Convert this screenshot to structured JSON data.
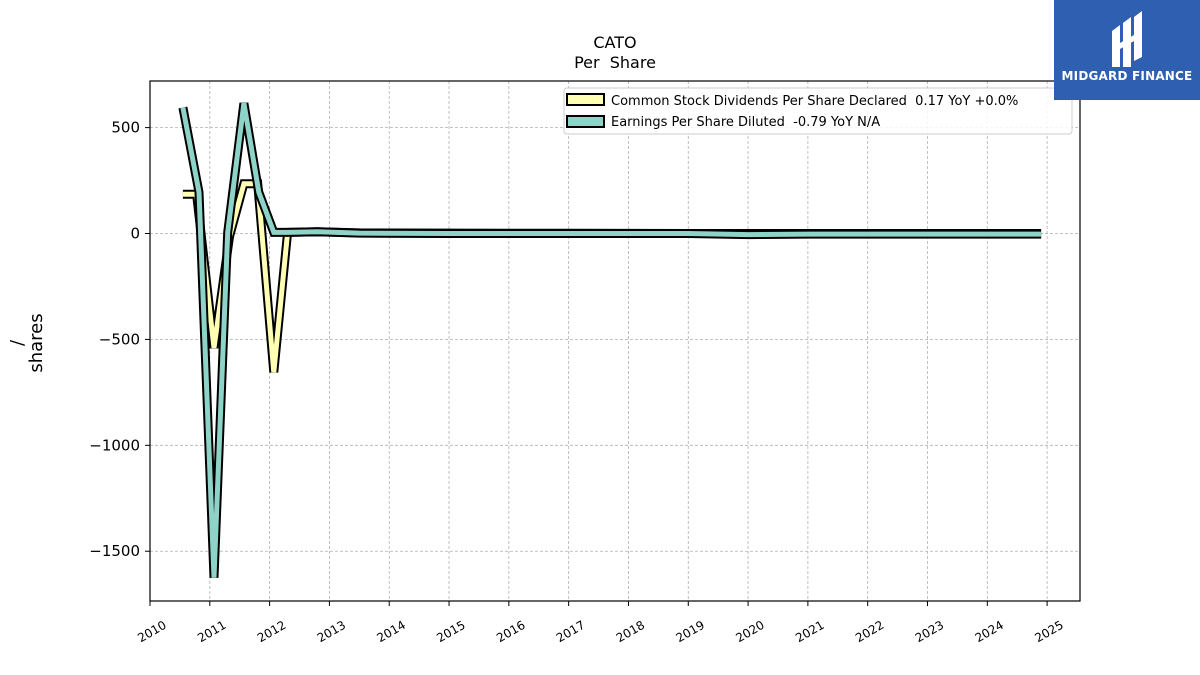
{
  "chart_data": {
    "type": "line",
    "title": "CATO",
    "subtitle": "Per  Share",
    "xlabel": "",
    "ylabel_line1": "/",
    "ylabel_line2": "shares",
    "x_ticks": [
      "2010",
      "2011",
      "2012",
      "2013",
      "2014",
      "2015",
      "2016",
      "2017",
      "2018",
      "2019",
      "2020",
      "2021",
      "2022",
      "2023",
      "2024",
      "2025"
    ],
    "y_ticks": [
      500,
      0,
      -500,
      -1000,
      -1500
    ],
    "y_tick_labels": [
      "500",
      "0",
      "−500",
      "−1000",
      "−1500"
    ],
    "xlim": [
      2010.0,
      2025.55
    ],
    "ylim": [
      -1735,
      720
    ],
    "grid": true,
    "legend_position": "top-right",
    "series": [
      {
        "name": "Common Stock Dividends Per Share Declared  0.17 YoY +0.0%",
        "color": "#ffffb3",
        "points": [
          [
            2010.55,
            185
          ],
          [
            2010.78,
            185
          ],
          [
            2011.07,
            -540
          ],
          [
            2011.33,
            -15
          ],
          [
            2011.57,
            235
          ],
          [
            2011.8,
            235
          ],
          [
            2012.07,
            -655
          ],
          [
            2012.3,
            5
          ],
          [
            2012.8,
            8
          ],
          [
            2013.5,
            3
          ],
          [
            2015,
            2
          ],
          [
            2017,
            1
          ],
          [
            2019,
            0
          ],
          [
            2021,
            0
          ],
          [
            2023,
            0
          ],
          [
            2024.9,
            0
          ]
        ]
      },
      {
        "name": "Earnings Per Share Diluted  -0.79 YoY N/A",
        "color": "#8dd3c7",
        "points": [
          [
            2010.55,
            595
          ],
          [
            2010.82,
            195
          ],
          [
            2011.07,
            -1625
          ],
          [
            2011.3,
            5
          ],
          [
            2011.57,
            615
          ],
          [
            2011.82,
            195
          ],
          [
            2012.07,
            5
          ],
          [
            2012.3,
            5
          ],
          [
            2012.8,
            8
          ],
          [
            2013.5,
            2
          ],
          [
            2015,
            0
          ],
          [
            2017,
            0
          ],
          [
            2019,
            0
          ],
          [
            2020,
            -5
          ],
          [
            2021,
            -3
          ],
          [
            2023,
            -3
          ],
          [
            2024.9,
            -3
          ]
        ]
      }
    ]
  },
  "logo": {
    "text": "MIDGARD FINANCE"
  }
}
